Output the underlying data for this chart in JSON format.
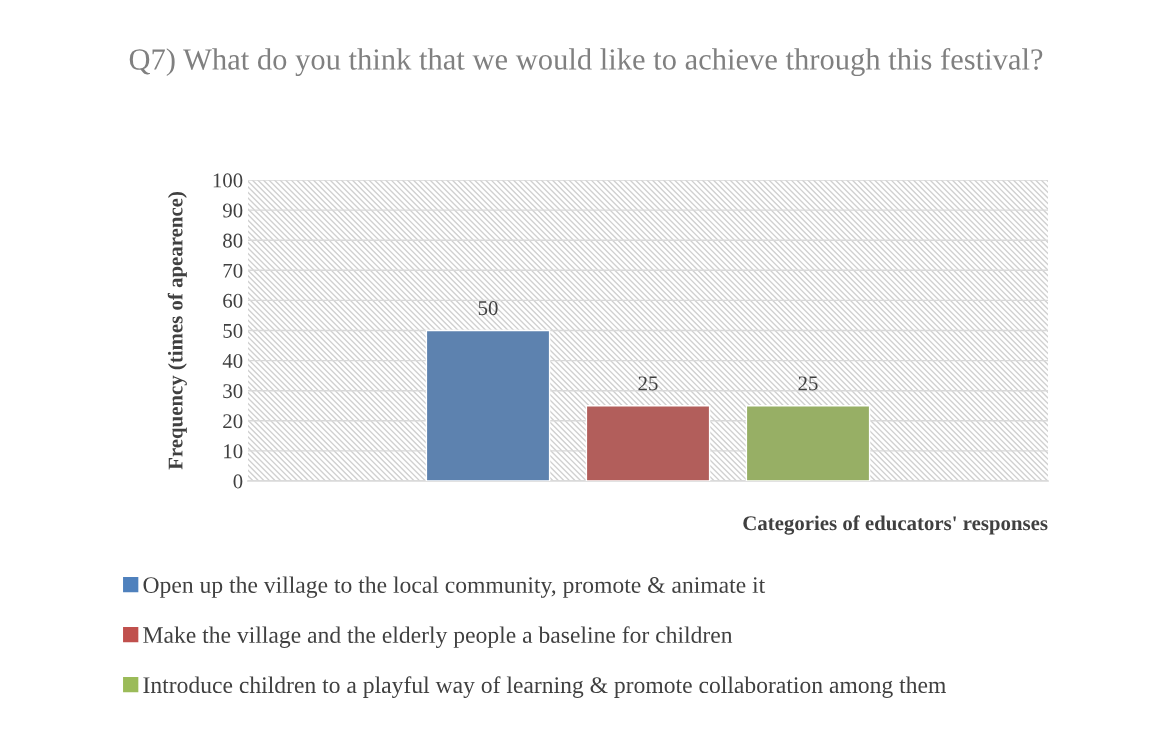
{
  "chart_data": {
    "type": "bar",
    "title": "Q7) What do you think that we would like to achieve through this festival?",
    "xlabel": "Categories of educators' responses",
    "ylabel": "Frequency (times of apearence)",
    "categories": [
      null
    ],
    "series": [
      {
        "name": "Open up the village to the local community, promote & animate it",
        "color": "#4f81bd",
        "values": [
          50
        ]
      },
      {
        "name": "Make the village and the elderly people a baseline for children",
        "color": "#c0504d",
        "values": [
          25
        ]
      },
      {
        "name": "Introduce children to a playful way of learning & promote collaboration among them",
        "color": "#9bbb59",
        "values": [
          25
        ]
      }
    ],
    "ylim": [
      0,
      100
    ],
    "yticks": [
      0,
      10,
      20,
      30,
      40,
      50,
      60,
      70,
      80,
      90,
      100
    ],
    "grid": "y",
    "legend": "bottom",
    "marker": "square",
    "data_labels": true
  }
}
